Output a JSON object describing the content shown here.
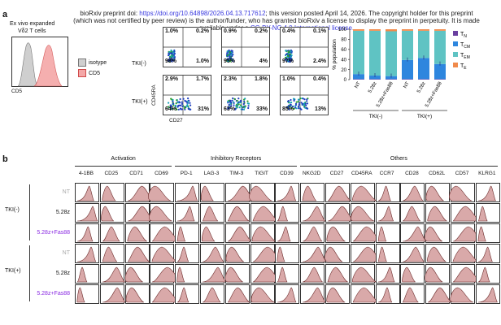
{
  "watermark": {
    "line1_a": "bioRxiv preprint doi: ",
    "line1_link": "https://doi.org/10.64898/2026.04.13.717612",
    "line1_b": "; this version posted April 14, 2026. The copyright holder for this preprint",
    "line2": "(which was not certified by peer review) is the author/funder, who has granted bioRxiv a license to display the preprint in perpetuity. It is made",
    "line3_a": "available under a",
    "line3_link": "CC-BY-NC 4.0 International license",
    "line3_b": "."
  },
  "panel_a": {
    "letter": "a",
    "histogram": {
      "title_line1": "Ex vivo expanded",
      "title_line2": "Vδ2 T cells",
      "xlabel": "CD5",
      "legend": [
        {
          "label": "isotype",
          "color": "#cfcfcf"
        },
        {
          "label": "CD5",
          "color": "#f4a7a7"
        }
      ]
    },
    "flow": {
      "ylabel": "CD45RA",
      "xlabel": "CD27",
      "row_labels": [
        "TKI(-)",
        "TKI(+)"
      ],
      "plots": [
        {
          "tl": "1.0%",
          "tr": "0.2%",
          "bl": "98%",
          "br": "1.0%"
        },
        {
          "tl": "0.9%",
          "tr": "0.2%",
          "bl": "95%",
          "br": "4%"
        },
        {
          "tl": "0.4%",
          "tr": "0.1%",
          "bl": "97%",
          "br": "2.4%"
        },
        {
          "tl": "2.9%",
          "tr": "1.7%",
          "bl": "64%",
          "br": "31%"
        },
        {
          "tl": "2.3%",
          "tr": "1.8%",
          "bl": "63%",
          "br": "33%"
        },
        {
          "tl": "1.0%",
          "tr": "0.4%",
          "bl": "85%",
          "br": "13%"
        }
      ]
    }
  },
  "chart_data": {
    "type": "bar",
    "stacked": true,
    "ylabel": "% population",
    "ylim": [
      0,
      100
    ],
    "yticks": [
      "0",
      "20",
      "40",
      "60",
      "80",
      "100"
    ],
    "categories": [
      "NT",
      "5.28z",
      "5.28z+Fas88",
      "NT",
      "5.28z",
      "5.28z+Fas88"
    ],
    "groups": [
      {
        "label": "TKI(-)"
      },
      {
        "label": "TKI(+)"
      }
    ],
    "legend_position": "top-right",
    "series": [
      {
        "name": "TN",
        "label_main": "T",
        "label_sub": "N",
        "color": "#6a3fa0",
        "values": [
          1,
          1,
          1,
          1,
          1,
          1
        ]
      },
      {
        "name": "TCM",
        "label_main": "T",
        "label_sub": "CM",
        "color": "#2e86de",
        "values": [
          10,
          7,
          6,
          38,
          42,
          30
        ]
      },
      {
        "name": "TEM",
        "label_main": "T",
        "label_sub": "EM",
        "color": "#5fc3c3",
        "values": [
          86,
          89,
          89,
          58,
          54,
          66
        ]
      },
      {
        "name": "TE",
        "label_main": "T",
        "label_sub": "E",
        "color": "#f08a4b",
        "values": [
          3,
          3,
          4,
          3,
          3,
          3
        ]
      }
    ]
  },
  "panel_b": {
    "letter": "b",
    "categories": [
      {
        "label": "Activation",
        "start": 0,
        "end": 3
      },
      {
        "label": "Inhibitory Receptors",
        "start": 4,
        "end": 8
      },
      {
        "label": "Others",
        "start": 9,
        "end": 16
      }
    ],
    "markers": [
      "4-1BB",
      "CD25",
      "CD71",
      "CD69",
      "PD-1",
      "LAG-3",
      "TIM-3",
      "TIGIT",
      "CD39",
      "NKG2D",
      "CD27",
      "CD45RA",
      "CCR7",
      "CD28",
      "CD62L",
      "CD57",
      "KLRG1"
    ],
    "group_labels": [
      "TKI(-)",
      "TKI(+)"
    ],
    "rows": [
      {
        "label": "NT",
        "color": "#aaaaaa",
        "group": 0
      },
      {
        "label": "5.28z",
        "color": "#111111",
        "group": 0
      },
      {
        "label": "5.28z+Fas88",
        "color": "#8a2be2",
        "group": 0
      },
      {
        "label": "NT",
        "color": "#aaaaaa",
        "group": 1
      },
      {
        "label": "5.28z",
        "color": "#111111",
        "group": 1
      },
      {
        "label": "5.28z+Fas88",
        "color": "#8a2be2",
        "group": 1
      }
    ],
    "hist_fill": "#d9a9a9"
  }
}
